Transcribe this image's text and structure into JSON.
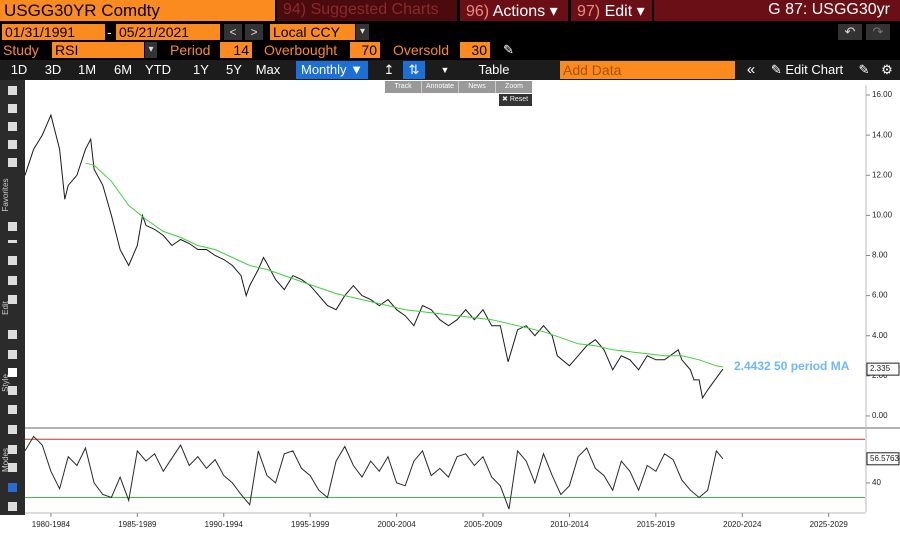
{
  "toolbar": {
    "security": "USGG30YR Comdty",
    "suggested": {
      "key": "94)",
      "label": "Suggested Charts"
    },
    "actions": {
      "key": "96)",
      "label": "Actions"
    },
    "edit": {
      "key": "97)",
      "label": "Edit"
    },
    "page_id": "G 87: USGG30yr"
  },
  "range": {
    "start": "01/31/1991",
    "separator": "-",
    "end": "05/21/2021",
    "currency": "Local CCY"
  },
  "study": {
    "label": "Study",
    "name": "RSI",
    "period_label": "Period",
    "period": 14,
    "overbought_label": "Overbought",
    "overbought": 70,
    "oversold_label": "Oversold",
    "oversold": 30
  },
  "periods": [
    "1D",
    "3D",
    "1M",
    "6M",
    "YTD",
    "1Y",
    "5Y",
    "Max"
  ],
  "frequency": "Monthly",
  "table": "Table",
  "add_data": "Add Data",
  "edit_chart": "Edit Chart",
  "chart_tools": [
    "Track",
    "Annotate",
    "News",
    "Zoom"
  ],
  "reset": "Reset",
  "side_labels": [
    "Favorites",
    "Edit",
    "Style",
    "Modes"
  ],
  "chart_data": [
    {
      "type": "line",
      "xlim": [
        1981,
        2029.6
      ],
      "ylim": [
        -0.45,
        16.5
      ],
      "yticks": [
        {
          "value": 0,
          "label": "0.00"
        },
        {
          "value": 2,
          "label": "2.00"
        },
        {
          "value": 4,
          "label": "4.00"
        },
        {
          "value": 6,
          "label": "6.00"
        },
        {
          "value": 8,
          "label": "8.00"
        },
        {
          "value": 10,
          "label": "10.00"
        },
        {
          "value": 12,
          "label": "12.00"
        },
        {
          "value": 14,
          "label": "14.00"
        },
        {
          "value": 16,
          "label": "16.00"
        }
      ],
      "series": [
        {
          "color": "#1a1a1a",
          "x": [
            1981,
            1981.5,
            1982,
            1982.5,
            1983,
            1983.3,
            1983.5,
            1984,
            1984.5,
            1984.8,
            1985,
            1985.5,
            1986,
            1986.5,
            1987,
            1987.5,
            1987.8,
            1988,
            1988.5,
            1989,
            1989.5,
            1990,
            1990.5,
            1991,
            1991.5,
            1992,
            1992.5,
            1993,
            1993.5,
            1993.8,
            1994,
            1994.5,
            1994.8,
            1995,
            1995.5,
            1996,
            1996.5,
            1997,
            1997.5,
            1998,
            1998.5,
            1999,
            1999.5,
            2000,
            2000.5,
            2001,
            2001.5,
            2002,
            2002.5,
            2003,
            2003.5,
            2004,
            2004.5,
            2005,
            2005.5,
            2006,
            2006.5,
            2007,
            2007.5,
            2008,
            2008.5,
            2008.95,
            2009.5,
            2010,
            2010.5,
            2011,
            2011.5,
            2011.8,
            2012.5,
            2013,
            2013.5,
            2014,
            2014.5,
            2015,
            2015.5,
            2016,
            2016.5,
            2017,
            2017.5,
            2018,
            2018.8,
            2019,
            2019.5,
            2019.7,
            2020,
            2020.2,
            2020.5,
            2021,
            2021.38
          ],
          "values": [
            12.0,
            13.3,
            14.0,
            15.0,
            13.3,
            10.8,
            11.5,
            12.0,
            13.3,
            13.8,
            12.3,
            11.5,
            10.0,
            8.3,
            7.5,
            8.5,
            10.0,
            9.5,
            9.3,
            9.0,
            8.5,
            8.8,
            8.6,
            8.3,
            8.3,
            8.0,
            7.8,
            7.5,
            7.0,
            6.0,
            6.5,
            7.3,
            7.9,
            7.6,
            6.8,
            6.3,
            7.0,
            6.8,
            6.5,
            6.0,
            5.5,
            5.3,
            6.0,
            6.5,
            6.0,
            5.8,
            5.5,
            5.8,
            5.3,
            5.0,
            4.5,
            5.5,
            5.3,
            4.8,
            4.5,
            4.8,
            5.3,
            4.8,
            5.3,
            4.5,
            4.5,
            2.7,
            4.3,
            4.5,
            4.0,
            4.5,
            4.0,
            3.0,
            2.5,
            3.0,
            3.5,
            3.8,
            3.3,
            2.3,
            3.0,
            2.8,
            2.3,
            3.0,
            2.8,
            2.8,
            3.3,
            2.8,
            2.3,
            1.8,
            1.8,
            0.9,
            1.3,
            1.9,
            2.335
          ]
        },
        {
          "color": "#3fd13f",
          "x": [
            1984.5,
            1985,
            1986,
            1987,
            1988,
            1989,
            1990,
            1991,
            1992,
            1993,
            1994,
            1995,
            1996,
            1997,
            1998,
            1999,
            2000,
            2001,
            2002,
            2003,
            2004,
            2005,
            2006,
            2007,
            2008,
            2009,
            2010,
            2011,
            2012,
            2013,
            2014,
            2015,
            2016,
            2017,
            2018,
            2019,
            2020,
            2021,
            2021.38
          ],
          "values": [
            12.6,
            12.5,
            11.7,
            10.5,
            9.8,
            9.2,
            8.9,
            8.5,
            8.3,
            7.9,
            7.5,
            7.3,
            7.0,
            6.7,
            6.4,
            6.1,
            5.9,
            5.7,
            5.5,
            5.3,
            5.2,
            5.1,
            5.0,
            4.9,
            4.8,
            4.6,
            4.4,
            4.2,
            3.9,
            3.6,
            3.5,
            3.3,
            3.2,
            3.1,
            3.0,
            3.0,
            2.8,
            2.5,
            2.4432
          ]
        }
      ],
      "annotations": [
        {
          "value": 2.335,
          "label": "2.335"
        },
        {
          "value": 2.4432,
          "label": "2.4432 50 period MA"
        }
      ]
    },
    {
      "type": "line",
      "xlim": [
        1981,
        2029.6
      ],
      "ylim": [
        20,
        75
      ],
      "yticks": [
        40
      ],
      "xticks": [
        {
          "value": 1982.5,
          "label": "1980-1984"
        },
        {
          "value": 1987.5,
          "label": "1985-1989"
        },
        {
          "value": 1992.5,
          "label": "1990-1994"
        },
        {
          "value": 1997.5,
          "label": "1995-1999"
        },
        {
          "value": 2002.5,
          "label": "2000-2004"
        },
        {
          "value": 2007.5,
          "label": "2005-2009"
        },
        {
          "value": 2012.5,
          "label": "2010-2014"
        },
        {
          "value": 2017.5,
          "label": "2015-2019"
        },
        {
          "value": 2022.5,
          "label": "2020-2024"
        },
        {
          "value": 2027.5,
          "label": "2025-2029"
        }
      ],
      "series": [
        {
          "color": "#2a2a2a",
          "x": [
            1981,
            1981.5,
            1982,
            1982.5,
            1983,
            1983.5,
            1984,
            1984.5,
            1985,
            1985.5,
            1986,
            1986.5,
            1987,
            1987.5,
            1988,
            1988.5,
            1989,
            1989.5,
            1990,
            1990.5,
            1991,
            1991.5,
            1992,
            1992.5,
            1993,
            1993.5,
            1994,
            1994.5,
            1995,
            1995.5,
            1996,
            1996.5,
            1997,
            1997.5,
            1998,
            1998.5,
            1999,
            1999.5,
            2000,
            2000.5,
            2001,
            2001.5,
            2002,
            2002.5,
            2003,
            2003.5,
            2004,
            2004.5,
            2005,
            2005.5,
            2006,
            2006.5,
            2007,
            2007.5,
            2008,
            2008.5,
            2009,
            2009.5,
            2010,
            2010.5,
            2011,
            2011.5,
            2012,
            2012.5,
            2013,
            2013.5,
            2014,
            2014.5,
            2015,
            2015.5,
            2016,
            2016.5,
            2017,
            2017.5,
            2018,
            2018.5,
            2019,
            2019.5,
            2020,
            2020.5,
            2021,
            2021.38
          ],
          "values": [
            62,
            72,
            66,
            48,
            36,
            58,
            52,
            64,
            40,
            32,
            30,
            44,
            28,
            62,
            55,
            60,
            48,
            57,
            66,
            52,
            58,
            50,
            56,
            45,
            40,
            32,
            25,
            62,
            45,
            40,
            60,
            62,
            50,
            45,
            35,
            30,
            55,
            65,
            52,
            44,
            55,
            48,
            58,
            40,
            38,
            55,
            62,
            45,
            50,
            44,
            58,
            60,
            52,
            58,
            44,
            38,
            22,
            62,
            55,
            40,
            60,
            45,
            32,
            38,
            58,
            64,
            50,
            45,
            35,
            55,
            48,
            35,
            52,
            48,
            60,
            56,
            42,
            35,
            30,
            35,
            62,
            56.5763
          ]
        }
      ],
      "annotations": [
        {
          "value": 56.5763,
          "label": "56.5763"
        }
      ]
    }
  ]
}
